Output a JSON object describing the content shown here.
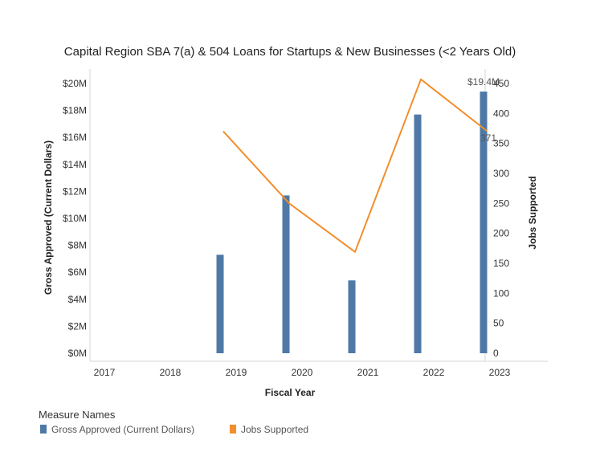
{
  "chart_data": {
    "type": "bar",
    "title": "Capital Region SBA 7(a) & 504 Loans for Startups & New Businesses (<2 Years Old)",
    "xlabel": "Fiscal Year",
    "ylabel": "Gross Approved (Current Dollars)",
    "y2label": "Jobs Supported",
    "x_ticks": [
      "2017",
      "2018",
      "2019",
      "2020",
      "2021",
      "2022",
      "2023"
    ],
    "categories": [
      "2018",
      "2019",
      "2020",
      "2021",
      "2022"
    ],
    "series": [
      {
        "name": "Gross Approved (Current Dollars)",
        "type": "bar",
        "axis": "left",
        "color": "#4e79a7",
        "values": [
          7300000,
          11700000,
          5400000,
          17700000,
          19400000
        ]
      },
      {
        "name": "Jobs Supported",
        "type": "line",
        "axis": "right",
        "color": "#f28e2b",
        "values": [
          370,
          250,
          169,
          457,
          371
        ]
      }
    ],
    "ylim": [
      0,
      20000000
    ],
    "y_ticks": [
      0,
      2000000,
      4000000,
      6000000,
      8000000,
      10000000,
      12000000,
      14000000,
      16000000,
      18000000,
      20000000
    ],
    "y_tick_labels": [
      "$0M",
      "$2M",
      "$4M",
      "$6M",
      "$8M",
      "$10M",
      "$12M",
      "$14M",
      "$16M",
      "$18M",
      "$20M"
    ],
    "y2lim": [
      0,
      450
    ],
    "y2_ticks": [
      0,
      50,
      100,
      150,
      200,
      250,
      300,
      350,
      400,
      450
    ],
    "y2_tick_labels": [
      "0",
      "50",
      "100",
      "150",
      "200",
      "250",
      "300",
      "350",
      "400",
      "450"
    ],
    "annotations": [
      {
        "series": 0,
        "index": 4,
        "text": "$19.4M"
      },
      {
        "series": 1,
        "index": 4,
        "text": "371"
      }
    ],
    "grid": false,
    "legend": {
      "title": "Measure Names",
      "position": "bottom-left",
      "items": [
        "Gross Approved (Current Dollars)",
        "Jobs Supported"
      ]
    }
  }
}
